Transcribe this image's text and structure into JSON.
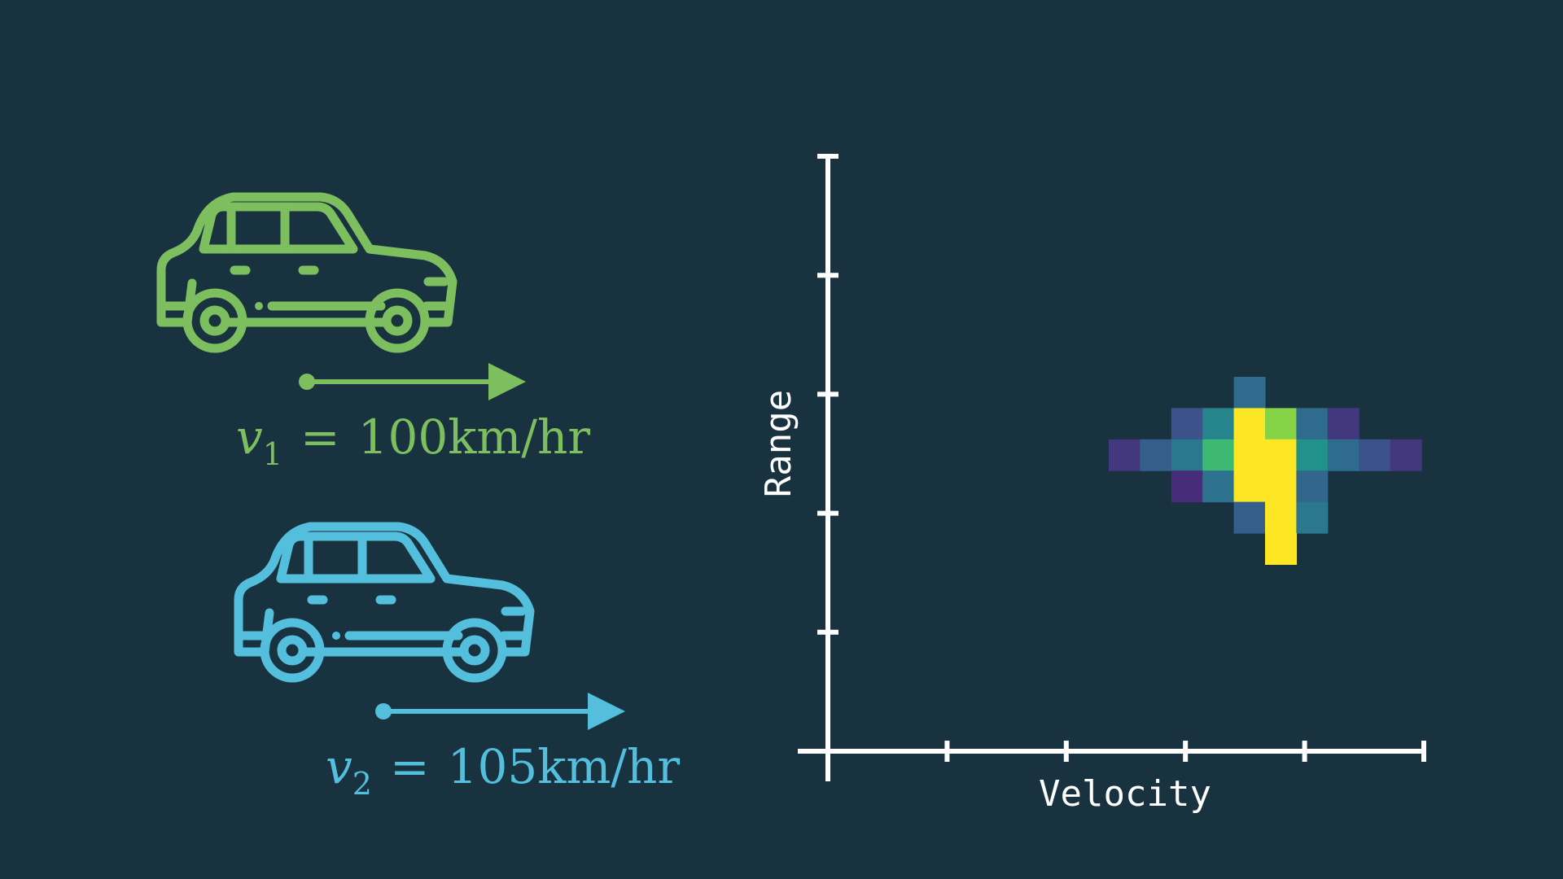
{
  "colors": {
    "background": "#193240",
    "car1": "#7dbf5e",
    "car2": "#53bfdc",
    "axis": "#ffffff"
  },
  "cars": [
    {
      "icon": "car-icon",
      "arrow": "velocity-arrow",
      "label": {
        "var": "v",
        "sub": "1",
        "rel": "=",
        "value": "100km/hr"
      }
    },
    {
      "icon": "car-icon",
      "arrow": "velocity-arrow",
      "label": {
        "var": "v",
        "sub": "2",
        "rel": "=",
        "value": "105km/hr"
      }
    }
  ],
  "chart_data": {
    "type": "heatmap",
    "xlabel": "Velocity",
    "ylabel": "Range",
    "x_ticks": 5,
    "y_ticks": 5,
    "colormap": "viridis",
    "grid": false,
    "cells": [
      {
        "col": 4,
        "row": 0,
        "v": 0.35
      },
      {
        "col": 2,
        "row": 1,
        "v": 0.25
      },
      {
        "col": 3,
        "row": 1,
        "v": 0.45
      },
      {
        "col": 4,
        "row": 1,
        "v": 1.0
      },
      {
        "col": 5,
        "row": 1,
        "v": 0.82
      },
      {
        "col": 6,
        "row": 1,
        "v": 0.35
      },
      {
        "col": 7,
        "row": 1,
        "v": 0.18
      },
      {
        "col": 0,
        "row": 2,
        "v": 0.18
      },
      {
        "col": 1,
        "row": 2,
        "v": 0.3
      },
      {
        "col": 2,
        "row": 2,
        "v": 0.4
      },
      {
        "col": 3,
        "row": 2,
        "v": 0.68
      },
      {
        "col": 4,
        "row": 2,
        "v": 1.0
      },
      {
        "col": 5,
        "row": 2,
        "v": 1.0
      },
      {
        "col": 6,
        "row": 2,
        "v": 0.5
      },
      {
        "col": 7,
        "row": 2,
        "v": 0.35
      },
      {
        "col": 8,
        "row": 2,
        "v": 0.25
      },
      {
        "col": 9,
        "row": 2,
        "v": 0.18
      },
      {
        "col": 2,
        "row": 3,
        "v": 0.15
      },
      {
        "col": 3,
        "row": 3,
        "v": 0.38
      },
      {
        "col": 4,
        "row": 3,
        "v": 1.0
      },
      {
        "col": 5,
        "row": 3,
        "v": 1.0
      },
      {
        "col": 6,
        "row": 3,
        "v": 0.33
      },
      {
        "col": 4,
        "row": 4,
        "v": 0.3
      },
      {
        "col": 5,
        "row": 4,
        "v": 1.0
      },
      {
        "col": 6,
        "row": 4,
        "v": 0.4
      },
      {
        "col": 5,
        "row": 5,
        "v": 1.0
      }
    ]
  }
}
